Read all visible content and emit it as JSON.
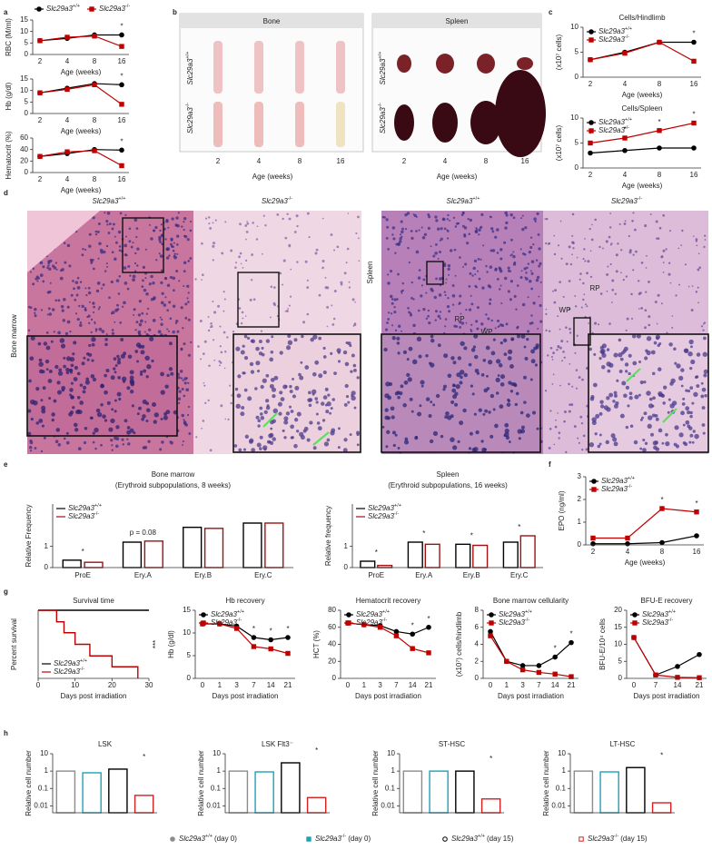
{
  "figure": {
    "letters": [
      "a",
      "b",
      "c",
      "d",
      "e",
      "f",
      "g",
      "h"
    ],
    "genotypes": [
      {
        "gene": "Slc29a3",
        "sup": "+/+"
      },
      {
        "gene": "Slc29a3",
        "sup": "-/-"
      }
    ],
    "b": {
      "bone": "Bone",
      "spleen": "Spleen",
      "ages": [
        2,
        4,
        8,
        16
      ],
      "xlabel": "Age (weeks)"
    },
    "d": {
      "bm_label": "Bone marrow",
      "spleen_label": "Spleen",
      "rp": "RP",
      "wp": "WP"
    },
    "h_legend": [
      {
        "gene": "Slc29a3",
        "sup": "+/+",
        "suffix": "(day 0)",
        "color": "#8c8c8c",
        "filled": true,
        "marker": "circle"
      },
      {
        "gene": "Slc29a3",
        "sup": "-/-",
        "suffix": "(day 0)",
        "color": "#1ba3b8",
        "filled": true,
        "marker": "square"
      },
      {
        "gene": "Slc29a3",
        "sup": "+/+",
        "suffix": "(day 15)",
        "color": "#000000",
        "filled": false,
        "marker": "circle"
      },
      {
        "gene": "Slc29a3",
        "sup": "-/-",
        "suffix": "(day 15)",
        "color": "#d42020",
        "filled": false,
        "marker": "square"
      }
    ]
  },
  "chart_data": [
    {
      "type": "line",
      "ylabel": "RBC (M/ml)",
      "xlabel": "Age (weeks)",
      "categories": [
        2,
        4,
        8,
        16
      ],
      "ylim": [
        0,
        15
      ],
      "yticks": [
        0,
        5,
        10,
        15
      ],
      "legend": "top",
      "series": [
        {
          "color": "#000000",
          "marker": "circle",
          "values": [
            6,
            7,
            8.5,
            8.5
          ]
        },
        {
          "color": "#c00000",
          "marker": "square",
          "values": [
            6,
            7.5,
            8,
            3.5
          ]
        }
      ],
      "annotations": [
        null,
        null,
        null,
        "*"
      ]
    },
    {
      "type": "line",
      "ylabel": "Hb (g/dl)",
      "xlabel": "Age (weeks)",
      "categories": [
        2,
        4,
        8,
        16
      ],
      "ylim": [
        0,
        15
      ],
      "yticks": [
        0,
        5,
        10,
        15
      ],
      "series": [
        {
          "color": "#000000",
          "marker": "circle",
          "values": [
            9,
            11,
            13,
            12.5
          ]
        },
        {
          "color": "#c00000",
          "marker": "square",
          "values": [
            9,
            10.5,
            12.5,
            4
          ]
        }
      ],
      "annotations": [
        null,
        null,
        null,
        "*"
      ]
    },
    {
      "type": "line",
      "ylabel": "Hematocrit (%)",
      "xlabel": "Age (weeks)",
      "categories": [
        2,
        4,
        8,
        16
      ],
      "ylim": [
        0,
        60
      ],
      "yticks": [
        0,
        20,
        40,
        60
      ],
      "series": [
        {
          "color": "#000000",
          "marker": "circle",
          "values": [
            28,
            33,
            40,
            39
          ]
        },
        {
          "color": "#c00000",
          "marker": "square",
          "values": [
            28,
            36,
            38,
            12
          ]
        }
      ],
      "annotations": [
        null,
        null,
        null,
        "*"
      ]
    },
    {
      "type": "line",
      "title": "Cells/Hindlimb",
      "ylabel": "(x10⁷ cells)",
      "xlabel": "Age (weeks)",
      "categories": [
        2,
        4,
        8,
        16
      ],
      "ylim": [
        0,
        10
      ],
      "yticks": [
        0,
        5,
        10
      ],
      "legend": "upper left",
      "series": [
        {
          "color": "#000000",
          "marker": "circle",
          "values": [
            3.5,
            5,
            7,
            7
          ]
        },
        {
          "color": "#c00000",
          "marker": "square",
          "values": [
            3.5,
            4.8,
            7,
            3.2
          ]
        }
      ],
      "annotations": [
        null,
        null,
        null,
        "*"
      ]
    },
    {
      "type": "line",
      "title": "Cells/Spleen",
      "ylabel": "(x10⁷ cells)",
      "xlabel": "Age (weeks)",
      "categories": [
        2,
        4,
        8,
        16
      ],
      "ylim": [
        0,
        10
      ],
      "yticks": [
        0,
        5,
        10
      ],
      "legend": "upper left",
      "series": [
        {
          "color": "#000000",
          "marker": "circle",
          "values": [
            3,
            3.5,
            4,
            4
          ]
        },
        {
          "color": "#c00000",
          "marker": "square",
          "values": [
            5,
            6,
            7.5,
            9
          ]
        }
      ],
      "annotations": [
        "*",
        "*",
        "*",
        "*"
      ]
    },
    {
      "type": "bar",
      "title": "Bone marrow",
      "subtitle": "(Erythroid subpopulations, 8 weeks)",
      "ylabel": "Relative Frequency",
      "categories": [
        "ProE",
        "Ery.A",
        "Ery.B",
        "Ery.C"
      ],
      "ylim": [
        0,
        3
      ],
      "yticks": [
        0,
        1
      ],
      "legend": "upper left",
      "series": [
        {
          "color": "#000000",
          "values": [
            0.35,
            1.2,
            1.9,
            2.1
          ]
        },
        {
          "color": "#a01010",
          "values": [
            0.25,
            1.25,
            1.85,
            2.1
          ]
        }
      ],
      "annotations": [
        "*",
        "p = 0.08",
        null,
        null
      ]
    },
    {
      "type": "bar",
      "title": "Spleen",
      "subtitle": "(Erythroid subpopulations, 16 weeks)",
      "ylabel": "Relative frequency",
      "categories": [
        "ProE",
        "Ery.A",
        "Ery.B",
        "Ery.C"
      ],
      "ylim": [
        0,
        3
      ],
      "yticks": [
        0,
        1
      ],
      "legend": "upper left",
      "series": [
        {
          "color": "#000000",
          "values": [
            0.3,
            1.2,
            1.1,
            1.2
          ]
        },
        {
          "color": "#a01010",
          "values": [
            0.1,
            1.1,
            1.05,
            1.5
          ]
        }
      ],
      "annotations": [
        "*",
        "*",
        "*",
        "*"
      ]
    },
    {
      "type": "line",
      "ylabel": "EPO (ng/ml)",
      "xlabel": "Age (weeks)",
      "categories": [
        2,
        4,
        8,
        16
      ],
      "ylim": [
        0,
        3
      ],
      "yticks": [
        0,
        1,
        2,
        3
      ],
      "legend": "upper left",
      "series": [
        {
          "color": "#000000",
          "marker": "circle",
          "values": [
            0.05,
            0.05,
            0.1,
            0.4
          ]
        },
        {
          "color": "#c00000",
          "marker": "square",
          "values": [
            0.3,
            0.3,
            1.6,
            1.45
          ]
        }
      ],
      "annotations": [
        null,
        null,
        "*",
        "*"
      ]
    },
    {
      "type": "step",
      "title": "Survival time",
      "ylabel": "Percent survival",
      "xlabel": "Days post irradiation",
      "xlim": [
        0,
        30
      ],
      "xticks": [
        0,
        10,
        20,
        30
      ],
      "ylim": [
        0,
        100
      ],
      "legend": "lower left",
      "series": [
        {
          "color": "#000000",
          "x": [
            0,
            30
          ],
          "values": [
            100,
            100
          ]
        },
        {
          "color": "#c00000",
          "x": [
            0,
            5,
            7,
            10,
            14,
            20,
            27
          ],
          "values": [
            100,
            83,
            67,
            50,
            33,
            17,
            0
          ]
        }
      ],
      "annotation": "***"
    },
    {
      "type": "line",
      "title": "Hb recovery",
      "ylabel": "Hb (g/dl)",
      "xlabel": "Days post irradiation",
      "categories": [
        0,
        1,
        3,
        7,
        14,
        21
      ],
      "ylim": [
        0,
        15
      ],
      "yticks": [
        0,
        5,
        10,
        15
      ],
      "legend": "upper left",
      "series": [
        {
          "color": "#000000",
          "marker": "circle",
          "values": [
            12,
            12,
            11.5,
            9,
            8.5,
            9
          ]
        },
        {
          "color": "#c00000",
          "marker": "square",
          "values": [
            12,
            12,
            11,
            7,
            6.5,
            5.5
          ]
        }
      ],
      "annotations": [
        null,
        null,
        null,
        "*",
        "*",
        "*"
      ]
    },
    {
      "type": "line",
      "title": "Hematocrit recovery",
      "ylabel": "HCT (%)",
      "xlabel": "Days post irradiation",
      "categories": [
        0,
        1,
        3,
        7,
        14,
        21
      ],
      "ylim": [
        0,
        80
      ],
      "yticks": [
        0,
        20,
        40,
        60,
        80
      ],
      "legend": "upper left",
      "series": [
        {
          "color": "#000000",
          "marker": "circle",
          "values": [
            65,
            63,
            62,
            55,
            52,
            60
          ]
        },
        {
          "color": "#c00000",
          "marker": "square",
          "values": [
            65,
            63,
            60,
            50,
            35,
            30
          ]
        }
      ],
      "annotations": [
        null,
        null,
        null,
        null,
        "*",
        "*"
      ]
    },
    {
      "type": "line",
      "title": "Bone marrow cellularity",
      "ylabel": "(x10⁷) cells/hindlimb",
      "xlabel": "Days post irradiation",
      "categories": [
        0,
        1,
        3,
        7,
        14,
        21
      ],
      "ylim": [
        0,
        8
      ],
      "yticks": [
        0,
        2,
        4,
        6,
        8
      ],
      "legend": "upper left",
      "series": [
        {
          "color": "#000000",
          "marker": "circle",
          "values": [
            5.5,
            2,
            1.5,
            1.5,
            2.5,
            4.2
          ]
        },
        {
          "color": "#c00000",
          "marker": "square",
          "values": [
            5,
            2,
            1,
            0.7,
            0.5,
            0.2
          ]
        }
      ],
      "annotations": [
        null,
        null,
        null,
        null,
        "*",
        "*"
      ]
    },
    {
      "type": "line",
      "title": "BFU-E recovery",
      "ylabel": "BFU-E/10⁴ cells",
      "xlabel": "Days post irradiation",
      "categories": [
        0,
        7,
        14,
        21
      ],
      "ylim": [
        0,
        20
      ],
      "yticks": [
        0,
        5,
        10,
        15,
        20
      ],
      "legend": "upper left",
      "series": [
        {
          "color": "#000000",
          "marker": "circle",
          "values": [
            12,
            1,
            3.5,
            7
          ]
        },
        {
          "color": "#c00000",
          "marker": "square",
          "values": [
            12,
            1,
            0.3,
            0.2
          ]
        }
      ]
    },
    {
      "type": "logbar",
      "title": "LSK",
      "ylabel": "Relative cell number",
      "log": true,
      "ylim": [
        0.004,
        10
      ],
      "yticks": [
        10,
        1,
        0.1,
        0.01
      ],
      "values": [
        1,
        0.8,
        1.3,
        0.04
      ],
      "annotations": [
        null,
        null,
        null,
        "*"
      ]
    },
    {
      "type": "logbar",
      "title": "LSK Flt3⁻",
      "ylabel": "Relative cell number",
      "log": true,
      "ylim": [
        0.004,
        10
      ],
      "yticks": [
        10,
        1,
        0.1,
        0.01
      ],
      "values": [
        1,
        0.9,
        3,
        0.03
      ],
      "annotations": [
        null,
        null,
        null,
        "*"
      ]
    },
    {
      "type": "logbar",
      "title": "ST-HSC",
      "ylabel": "Relative cell number",
      "log": true,
      "ylim": [
        0.004,
        10
      ],
      "yticks": [
        10,
        1,
        0.1,
        0.01
      ],
      "values": [
        1,
        1,
        1,
        0.025
      ],
      "annotations": [
        null,
        null,
        null,
        "*"
      ]
    },
    {
      "type": "logbar",
      "title": "LT-HSC",
      "ylabel": "Relative cell number",
      "log": true,
      "ylim": [
        0.004,
        10
      ],
      "yticks": [
        10,
        1,
        0.1,
        0.01
      ],
      "values": [
        1,
        0.9,
        1.6,
        0.015
      ],
      "annotations": [
        null,
        null,
        null,
        "*"
      ]
    }
  ]
}
